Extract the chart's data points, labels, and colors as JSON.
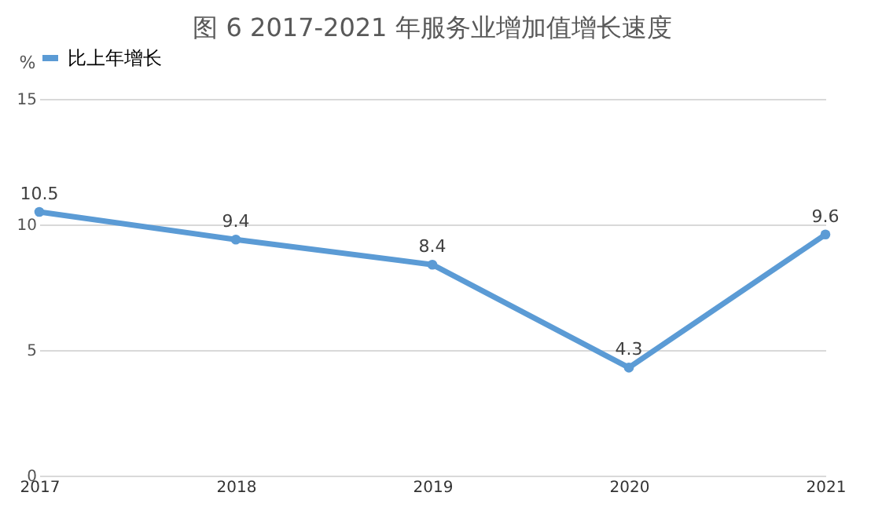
{
  "chart_data": {
    "type": "line",
    "title": "图 6   2017-2021 年服务业增加值增长速度",
    "ylabel": "%",
    "categories": [
      "2017",
      "2018",
      "2019",
      "2020",
      "2021"
    ],
    "series": [
      {
        "name": "比上年增长",
        "color": "#5b9bd5",
        "values": [
          10.5,
          9.4,
          8.4,
          4.3,
          9.6
        ]
      }
    ],
    "ylim": [
      0,
      15
    ],
    "yticks": [
      0,
      5,
      10,
      15
    ],
    "grid": "y",
    "legend": "top",
    "marker": "circle",
    "line_style": "solid",
    "data_labels": true
  }
}
